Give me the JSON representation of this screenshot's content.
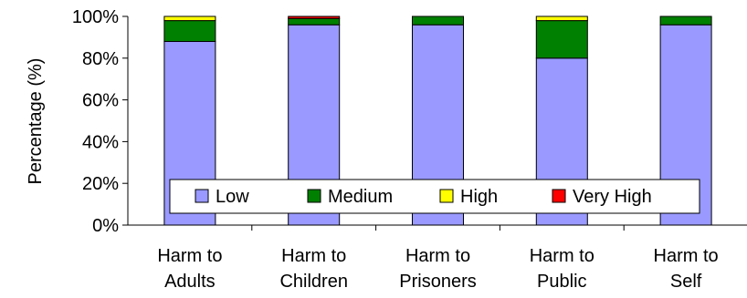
{
  "chart_data": {
    "type": "bar",
    "stacked": true,
    "percent": true,
    "categories": [
      [
        "Harm to",
        "Adults"
      ],
      [
        "Harm to",
        "Children"
      ],
      [
        "Harm to",
        "Prisoners"
      ],
      [
        "Harm to",
        "Public"
      ],
      [
        "Harm to",
        "Self"
      ]
    ],
    "series": [
      {
        "name": "Low",
        "color": "#9999ff",
        "values": [
          88,
          96,
          96,
          80,
          96
        ]
      },
      {
        "name": "Medium",
        "color": "#008000",
        "values": [
          10,
          3,
          4,
          18,
          4
        ]
      },
      {
        "name": "High",
        "color": "#ffff00",
        "values": [
          2,
          0,
          0,
          2,
          0
        ]
      },
      {
        "name": "Very High",
        "color": "#ff0000",
        "values": [
          0,
          1,
          0,
          0,
          0
        ]
      }
    ],
    "ylabel": "Percentage (%)",
    "yticks": [
      "0%",
      "20%",
      "40%",
      "60%",
      "80%",
      "100%"
    ],
    "ylim": [
      0,
      100
    ],
    "grid": false,
    "legend_position": "bottom-inside"
  }
}
